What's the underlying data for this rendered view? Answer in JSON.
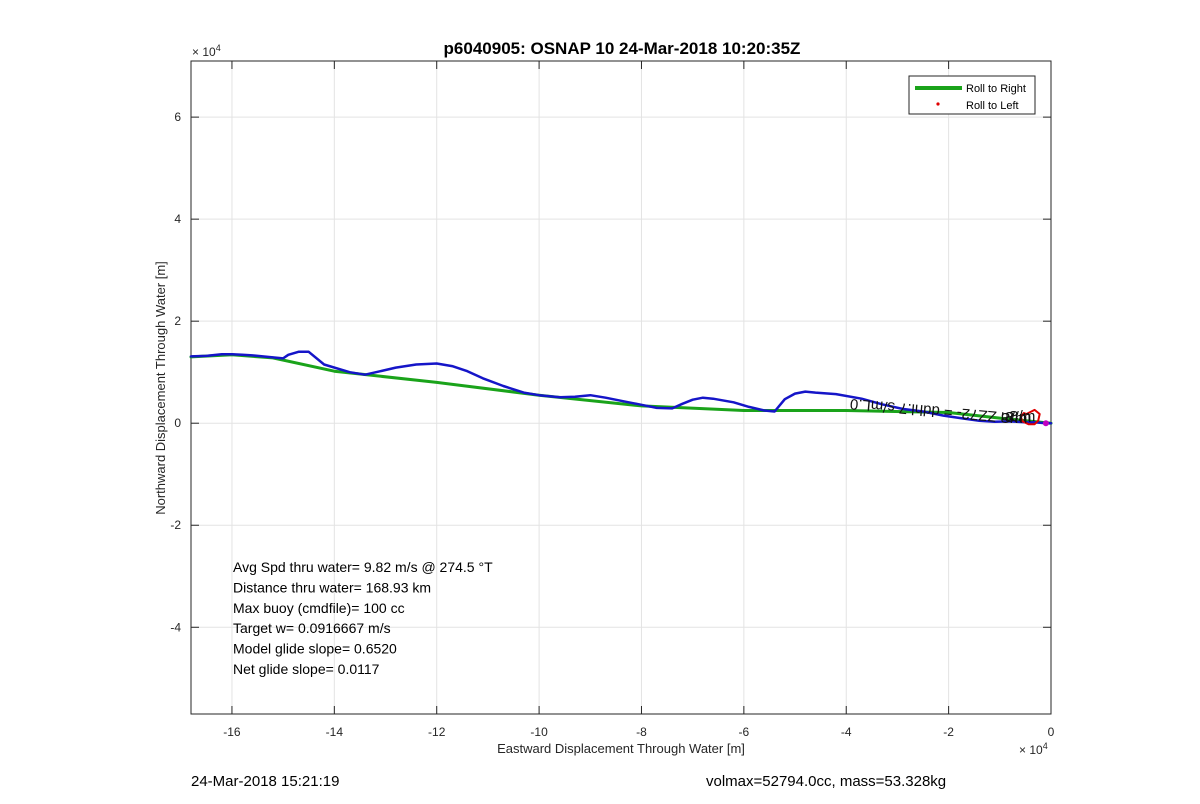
{
  "chart_data": {
    "type": "line",
    "title": "p6040905: OSNAP 10 24-Mar-2018 10:20:35Z",
    "xlabel": "Eastward Displacement Through Water [m]",
    "ylabel": "Northward Displacement Through Water [m]",
    "x_exponent_label": "× 10",
    "y_exponent_label": "× 10",
    "exponent_power": "4",
    "xlim": [
      -168000,
      0
    ],
    "ylim": [
      -57000,
      71000
    ],
    "xticks": [
      -160000,
      -140000,
      -120000,
      -100000,
      -80000,
      -60000,
      -40000,
      -20000,
      0
    ],
    "xtick_labels": [
      "-16",
      "-14",
      "-12",
      "-10",
      "-8",
      "-6",
      "-4",
      "-2",
      "0"
    ],
    "yticks": [
      -40000,
      -20000,
      0,
      20000,
      40000,
      60000
    ],
    "ytick_labels": [
      "-4",
      "-2",
      "0",
      "2",
      "4",
      "6"
    ],
    "grid": true,
    "legend_position": "top-right",
    "legend": [
      {
        "label": "Roll to Right",
        "color": "#1aa31a",
        "kind": "line"
      },
      {
        "label": "Roll to Left",
        "color": "#e00000",
        "kind": "dot"
      }
    ],
    "series": [
      {
        "color": "#1aa31a",
        "x": [
          -168000,
          -160000,
          -152000,
          -140000,
          -120000,
          -100000,
          -80000,
          -60000,
          -40000,
          -20000,
          -10000,
          0
        ],
        "y": [
          13000,
          13400,
          12800,
          10200,
          8000,
          5500,
          3400,
          2500,
          2500,
          2100,
          1000,
          0
        ]
      },
      {
        "color": "#1515c8",
        "x": [
          -168000,
          -165000,
          -162000,
          -160000,
          -158000,
          -156000,
          -153000,
          -150000,
          -149000,
          -147000,
          -145000,
          -142000,
          -137000,
          -134000,
          -131000,
          -128000,
          -124000,
          -120000,
          -117000,
          -114000,
          -111000,
          -107000,
          -103000,
          -100000,
          -96000,
          -93000,
          -90000,
          -87000,
          -83000,
          -80000,
          -77000,
          -74000,
          -72000,
          -70000,
          -68000,
          -66000,
          -62000,
          -59000,
          -56000,
          -54000,
          -52000,
          -50000,
          -48000,
          -46000,
          -42000,
          -37000,
          -33000,
          -29000,
          -25000,
          -21000,
          -17000,
          -14000,
          -11000,
          -8000,
          -5000,
          -3000,
          -1000,
          0
        ],
        "y": [
          13100,
          13200,
          13500,
          13500,
          13400,
          13300,
          13000,
          12700,
          13400,
          14000,
          14000,
          11500,
          10000,
          9500,
          10200,
          10900,
          11500,
          11700,
          11200,
          10200,
          8800,
          7300,
          6000,
          5500,
          5100,
          5200,
          5500,
          5000,
          4200,
          3600,
          3000,
          2900,
          3800,
          4600,
          5000,
          4800,
          4100,
          3200,
          2500,
          2300,
          4700,
          5800,
          6200,
          6000,
          5700,
          4800,
          3700,
          2800,
          2300,
          1500,
          900,
          500,
          300,
          350,
          200,
          150,
          0,
          0
        ]
      },
      {
        "color": "#e00000",
        "x": [
          -4800,
          -3200,
          -2200,
          -2500,
          -3200,
          -4400,
          -5600,
          -5900,
          -5300,
          -4800
        ],
        "y": [
          1800,
          2600,
          1800,
          500,
          -200,
          -200,
          400,
          1300,
          2000,
          1800
        ]
      }
    ],
    "annotations": [
      "Avg Spd thru water=  9.82 m/s @ 274.5 °T",
      "Distance thru water= 168.93 km",
      "Max buoy (cmdfile)= 100 cc",
      "Target w= 0.0916667 m/s",
      "Model glide slope= 0.6520",
      "Net glide slope= 0.0117"
    ],
    "overlay_text": {
      "rotated": "m ZZ72- = ddhl.7 s/mL.0",
      "stacked": [
        "Ƨ/m",
        "Ƨ/m",
        "Ƨ/m"
      ]
    }
  },
  "footer": {
    "timestamp": "24-Mar-2018 15:21:19",
    "stats": "volmax=52794.0cc, mass=53.328kg"
  }
}
